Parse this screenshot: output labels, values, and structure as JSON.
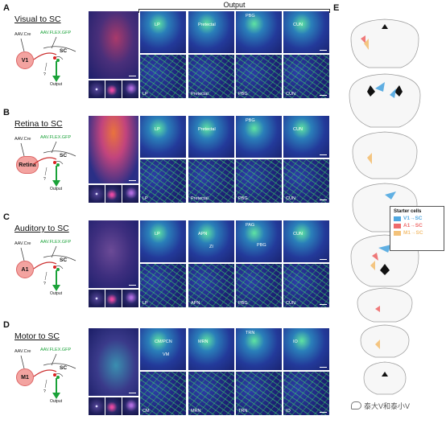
{
  "header": {
    "output_label": "Output"
  },
  "panel_e_letter": "E",
  "panels": [
    {
      "letter": "A",
      "title": "Visual to SC",
      "region": "V1",
      "virus_left": "AAV.Cre",
      "virus_right": "AAV.FLEX.GFP",
      "sc_label": "SC",
      "output_label": "Output",
      "top_labels": [
        "LP",
        "Pretectal",
        "PBG",
        "CUN"
      ],
      "bottom_labels": [
        "LP",
        "Pretectal",
        "PBG",
        "CUN"
      ]
    },
    {
      "letter": "B",
      "title": "Retina to SC",
      "region": "Retina",
      "virus_left": "AAV.Cre",
      "virus_right": "AAV.FLEX.GFP",
      "sc_label": "SC",
      "output_label": "Output",
      "top_labels": [
        "LP",
        "Pretectal",
        "PBG",
        "CUN"
      ],
      "bottom_labels": [
        "LP",
        "Pretectal",
        "PBG",
        "CUN"
      ]
    },
    {
      "letter": "C",
      "title": "Auditory to SC",
      "region": "A1",
      "virus_left": "AAV.Cre",
      "virus_right": "AAV.FLEX.GFP",
      "sc_label": "SC",
      "output_label": "Output",
      "top_labels": [
        "LP",
        "APN",
        "PAG",
        "CUN"
      ],
      "top_extra": [
        "",
        "ZI",
        "PBG",
        ""
      ],
      "bottom_labels": [
        "LP",
        "APN",
        "PBG",
        "CUN"
      ]
    },
    {
      "letter": "D",
      "title": "Motor to SC",
      "region": "M1",
      "virus_left": "AAV.Cre",
      "virus_right": "AAV.FLEX.GFP",
      "sc_label": "SC",
      "output_label": "Output",
      "top_labels": [
        "CM/PCN",
        "MRN",
        "TRN",
        "IO"
      ],
      "top_extra": [
        "VM",
        "",
        "",
        ""
      ],
      "bottom_labels": [
        "CM",
        "MRN",
        "TRN",
        "IO"
      ]
    }
  ],
  "legend": {
    "title": "Starter cells",
    "items": [
      {
        "label": "V1→SC",
        "color": "#4fa7e0"
      },
      {
        "label": "A1→SC",
        "color": "#ee6b6b"
      },
      {
        "label": "M1→SC",
        "color": "#f3c27a"
      }
    ]
  },
  "watermark": "泰大V和泰小V"
}
